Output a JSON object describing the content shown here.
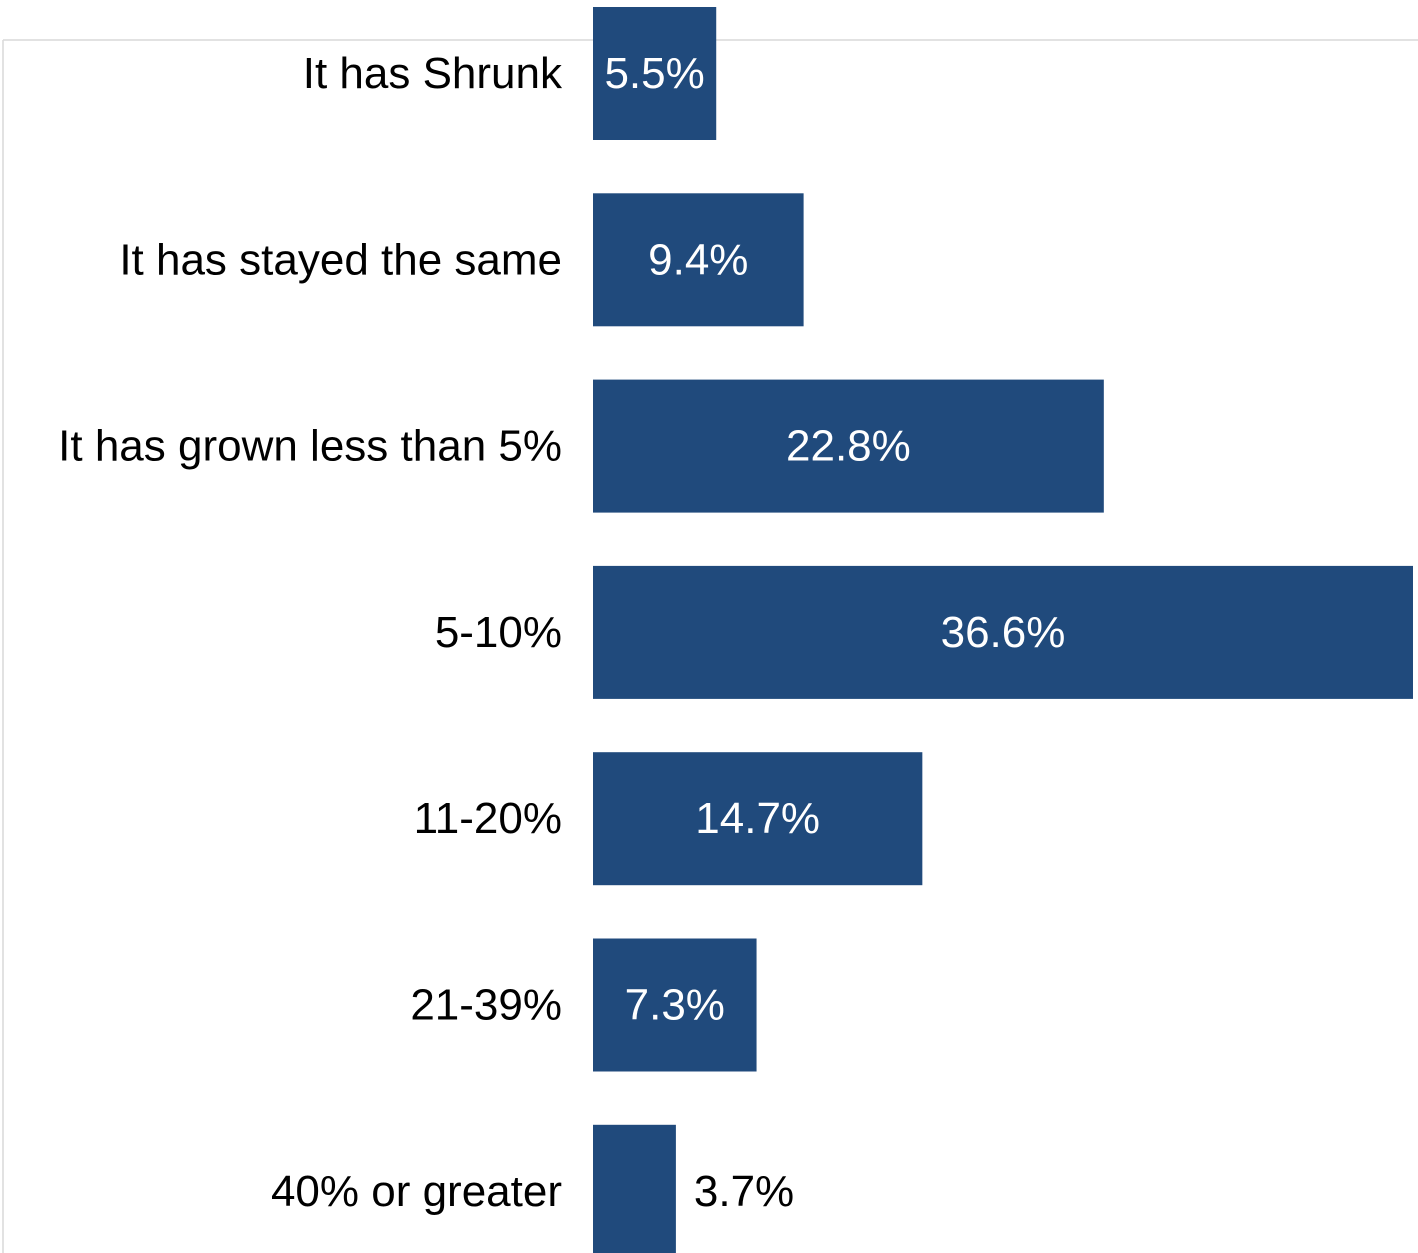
{
  "chart_data": {
    "type": "bar",
    "orientation": "horizontal",
    "categories": [
      "It has Shrunk",
      "It has stayed the same",
      "It has grown less than 5%",
      "5-10%",
      "11-20%",
      "21-39%",
      "40% or greater"
    ],
    "values": [
      5.5,
      9.4,
      22.8,
      36.6,
      14.7,
      7.3,
      3.7
    ],
    "data_labels": [
      "5.5%",
      "9.4%",
      "22.8%",
      "36.6%",
      "14.7%",
      "7.3%",
      "3.7%"
    ],
    "title": "",
    "xlabel": "",
    "ylabel": "",
    "xlim": [
      0,
      36.6
    ],
    "grid": false,
    "legend": "none",
    "colors": {
      "bar": "#204A7C",
      "label_inside": "#FFFFFF",
      "label_outside": "#000000",
      "frame": "#D9D9D9"
    }
  }
}
